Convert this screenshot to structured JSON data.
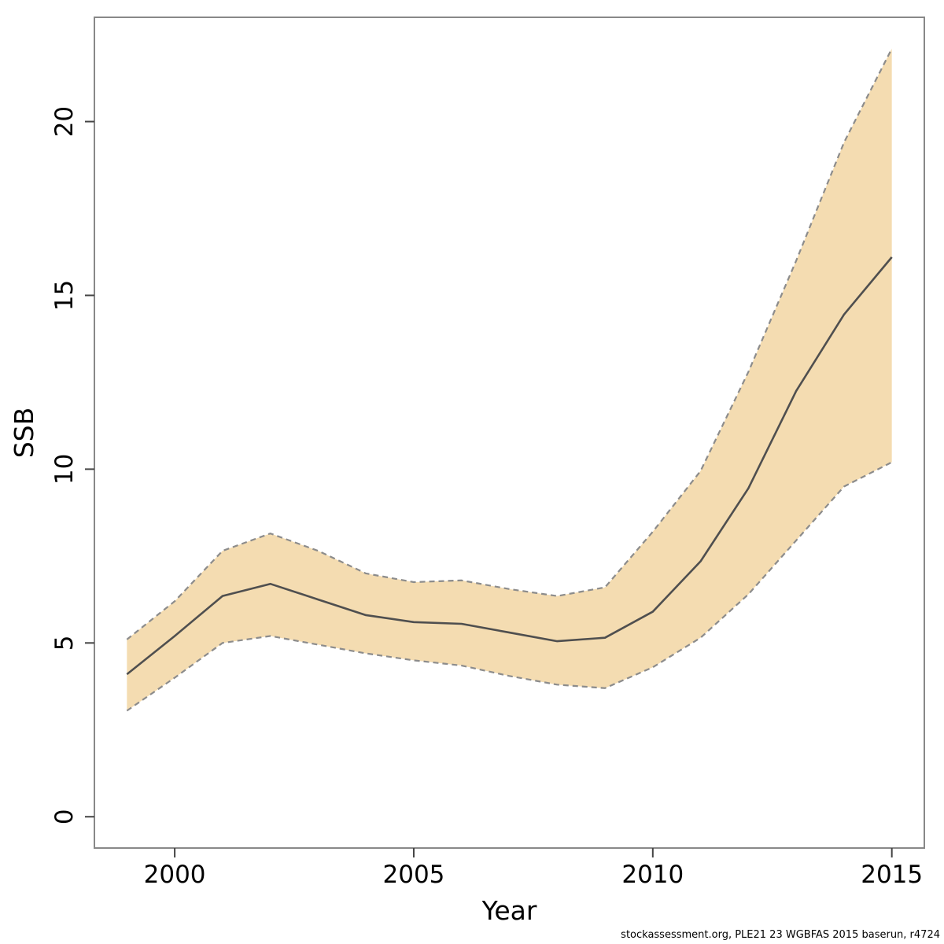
{
  "page": {
    "background": "#ffffff"
  },
  "footer": {
    "source_text": "stockassessment.org, PLE21 23 WGBFAS 2015 baserun, r4724"
  },
  "chart_data": {
    "type": "line",
    "title": "",
    "xlabel": "Year",
    "ylabel": "SSB",
    "x": [
      1999,
      2000,
      2001,
      2002,
      2003,
      2004,
      2005,
      2006,
      2007,
      2008,
      2009,
      2010,
      2011,
      2012,
      2013,
      2014,
      2015
    ],
    "series": [
      {
        "name": "ssb-estimate",
        "style": "solid",
        "color": "#4f4f4f",
        "width": 2.6,
        "values": [
          4.1,
          5.2,
          6.35,
          6.7,
          6.25,
          5.8,
          5.6,
          5.55,
          5.3,
          5.05,
          5.15,
          5.9,
          7.35,
          9.45,
          12.25,
          14.45,
          16.1
        ]
      },
      {
        "name": "ssb-lower-ci",
        "style": "dashed",
        "color": "#8c8c8c",
        "width": 2.2,
        "values": [
          3.05,
          4.0,
          5.0,
          5.2,
          4.95,
          4.7,
          4.5,
          4.35,
          4.05,
          3.8,
          3.7,
          4.3,
          5.15,
          6.4,
          7.95,
          9.5,
          10.2
        ]
      },
      {
        "name": "ssb-upper-ci",
        "style": "dashed",
        "color": "#8c8c8c",
        "width": 2.2,
        "values": [
          5.1,
          6.2,
          7.65,
          8.15,
          7.65,
          7.0,
          6.75,
          6.8,
          6.55,
          6.35,
          6.6,
          8.2,
          9.95,
          12.8,
          16.0,
          19.4,
          22.1
        ]
      }
    ],
    "band": {
      "fill": "#f4dcb1",
      "lower": "ssb-lower-ci",
      "upper": "ssb-upper-ci"
    },
    "x_ticks": [
      2000,
      2005,
      2010,
      2015
    ],
    "y_ticks": [
      0,
      5,
      10,
      15,
      20
    ],
    "xlim": [
      1998.32,
      2015.68
    ],
    "ylim": [
      -0.9,
      23.0
    ],
    "grid": false,
    "legend": false,
    "colors": {
      "border": "#888888",
      "tick": "#444444",
      "text": "#000000"
    }
  },
  "layout_note": "R-style base plot, confidence band with dashed borders"
}
